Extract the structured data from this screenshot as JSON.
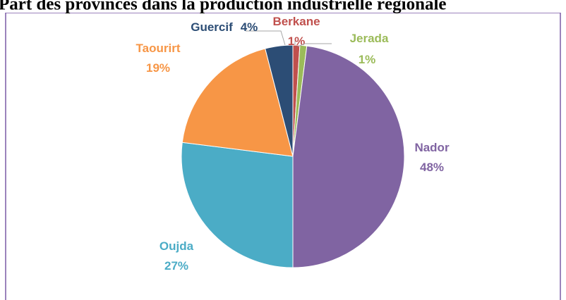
{
  "chart_data": {
    "type": "pie",
    "title": "Part des provinces dans la production industrielle régionale",
    "categories": [
      "Berkane",
      "Jerada",
      "Nador",
      "Oujda",
      "Taourirt",
      "Guercif"
    ],
    "values": [
      1,
      1,
      48,
      27,
      19,
      4
    ],
    "value_labels": [
      "1%",
      "1%",
      "48%",
      "27%",
      "19%",
      "4%"
    ],
    "colors": [
      "#c0504d",
      "#9bbb59",
      "#8064a2",
      "#4bacc6",
      "#f79646",
      "#2c4d75"
    ]
  }
}
